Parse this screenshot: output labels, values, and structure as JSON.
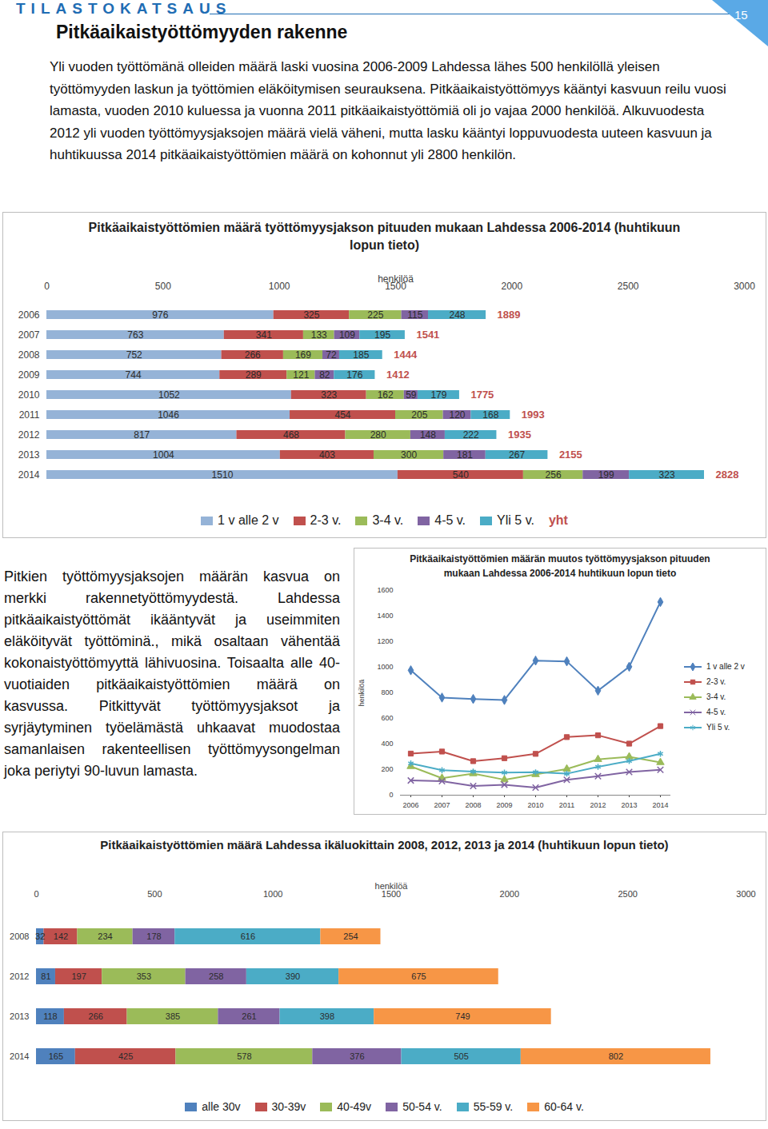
{
  "header": {
    "series_name": "TILASTOKATSAUS",
    "page": "15",
    "title": "Pitkäaikaistyöttömyyden rakenne"
  },
  "intro": "Yli vuoden työttömänä olleiden määrä laski vuosina 2006-2009 Lahdessa lähes 500 henkilöllä yleisen työttömyyden laskun ja työttömien eläköitymisen seurauksena. Pitkäaikaistyöttömyys kääntyi kasvuun reilu vuosi lamasta, vuoden 2010 kuluessa ja vuonna 2011 pitkäaikaistyöttömiä oli jo vajaa 2000 henkilöä. Alkuvuodesta 2012 yli vuoden työttömyysjaksojen määrä vielä väheni, mutta lasku kääntyi loppuvuodesta uuteen kasvuun ja huhtikuussa 2014 pitkäaikaistyöttömien määrä on kohonnut yli 2800 henkilön.",
  "side_text": "Pitkien työttömyysjaksojen määrän kasvua on merkki rakennetyöttömyydestä. Lahdessa pitkäaikaistyöttömät ikääntyvät ja useimmiten eläköityvät työttöminä., mikä osaltaan vähentää kokonaistyöttömyyttä lähivuosina. Toisaalta alle 40-vuotiaiden pitkäaikaistyöttömien määrä on kasvussa. Pitkittyvät työttömyysjaksot ja syrjäytyminen työelämästä uhkaavat muodostaa samanlaisen rakenteellisen työttömyysongelman joka periytyi 90-luvun lamasta.",
  "chart_data": [
    {
      "type": "bar",
      "title": "Pitkäaikaistyöttömien määrä työttömyysjakson pituuden mukaan Lahdessa 2006-2014 (huhtikuun lopun tieto)",
      "xlabel": "henkilöä",
      "orientation": "horizontal",
      "stacked": true,
      "data_labels": true,
      "legend": "bottom",
      "xlim": [
        0,
        3000
      ],
      "xticks": [
        0,
        500,
        1000,
        1500,
        2000,
        2500,
        3000
      ],
      "categories": [
        "2006",
        "2007",
        "2008",
        "2009",
        "2010",
        "2011",
        "2012",
        "2013",
        "2014"
      ],
      "series": [
        {
          "name": "1 v alle 2 v",
          "color": "#95b3d7",
          "values": [
            976,
            763,
            752,
            744,
            1052,
            1046,
            817,
            1004,
            1510
          ]
        },
        {
          "name": "2-3 v.",
          "color": "#c0504d",
          "values": [
            325,
            341,
            266,
            289,
            323,
            454,
            468,
            403,
            540
          ]
        },
        {
          "name": "3-4 v.",
          "color": "#9bbb59",
          "values": [
            225,
            133,
            169,
            121,
            162,
            205,
            280,
            300,
            256
          ]
        },
        {
          "name": "4-5 v.",
          "color": "#8064a2",
          "values": [
            115,
            109,
            72,
            82,
            59,
            120,
            148,
            181,
            199
          ]
        },
        {
          "name": "Yli 5 v.",
          "color": "#4bacc6",
          "values": [
            248,
            195,
            185,
            176,
            179,
            168,
            222,
            267,
            323
          ]
        },
        {
          "name": "yht",
          "color": "#c0504d",
          "type": "text",
          "values": [
            1889,
            1541,
            1444,
            1412,
            1775,
            1993,
            1935,
            2155,
            2828
          ]
        }
      ]
    },
    {
      "type": "line",
      "title": "Pitkäaikaistyöttömien määrän muutos työttömyysjakson pituuden mukaan Lahdessa 2006-2014 huhtikuun lopun tieto",
      "ylabel": "henkilöä",
      "legend": "right",
      "ylim": [
        0,
        1600
      ],
      "yticks": [
        0,
        200,
        400,
        600,
        800,
        1000,
        1200,
        1400,
        1600
      ],
      "categories": [
        "2006",
        "2007",
        "2008",
        "2009",
        "2010",
        "2011",
        "2012",
        "2013",
        "2014"
      ],
      "series": [
        {
          "name": "1 v alle 2 v",
          "color": "#4f81bd",
          "marker": "diamond",
          "values": [
            976,
            763,
            752,
            744,
            1052,
            1046,
            817,
            1004,
            1510
          ]
        },
        {
          "name": "2-3 v.",
          "color": "#c0504d",
          "marker": "square",
          "values": [
            325,
            341,
            266,
            289,
            323,
            454,
            468,
            403,
            540
          ]
        },
        {
          "name": "3-4 v.",
          "color": "#9bbb59",
          "marker": "triangle",
          "values": [
            225,
            133,
            169,
            121,
            162,
            205,
            280,
            300,
            256
          ]
        },
        {
          "name": "4-5 v.",
          "color": "#8064a2",
          "marker": "times",
          "values": [
            115,
            109,
            72,
            82,
            59,
            120,
            148,
            181,
            199
          ]
        },
        {
          "name": "Yli 5 v.",
          "color": "#4bacc6",
          "marker": "asterisk",
          "values": [
            248,
            195,
            185,
            176,
            179,
            168,
            222,
            267,
            323
          ]
        }
      ]
    },
    {
      "type": "bar",
      "title": "Pitkäaikaistyöttömien määrä Lahdessa ikäluokittain 2008, 2012, 2013 ja 2014 (huhtikuun lopun tieto)",
      "xlabel": "henkilöä",
      "orientation": "horizontal",
      "stacked": true,
      "data_labels": true,
      "legend": "bottom",
      "xlim": [
        0,
        3000
      ],
      "xticks": [
        0,
        500,
        1000,
        1500,
        2000,
        2500,
        3000
      ],
      "categories": [
        "2008",
        "2012",
        "2013",
        "2014"
      ],
      "series": [
        {
          "name": "alle 30v",
          "color": "#4f81bd",
          "values": [
            32,
            81,
            118,
            165
          ]
        },
        {
          "name": "30-39v",
          "color": "#c0504d",
          "values": [
            142,
            197,
            266,
            425
          ]
        },
        {
          "name": "40-49v",
          "color": "#9bbb59",
          "values": [
            234,
            353,
            385,
            578
          ]
        },
        {
          "name": "50-54 v.",
          "color": "#8064a2",
          "values": [
            178,
            258,
            261,
            376
          ]
        },
        {
          "name": "55-59 v.",
          "color": "#4bacc6",
          "values": [
            616,
            390,
            398,
            505
          ]
        },
        {
          "name": "60-64 v.",
          "color": "#f79646",
          "values": [
            254,
            675,
            749,
            802
          ]
        }
      ]
    }
  ]
}
